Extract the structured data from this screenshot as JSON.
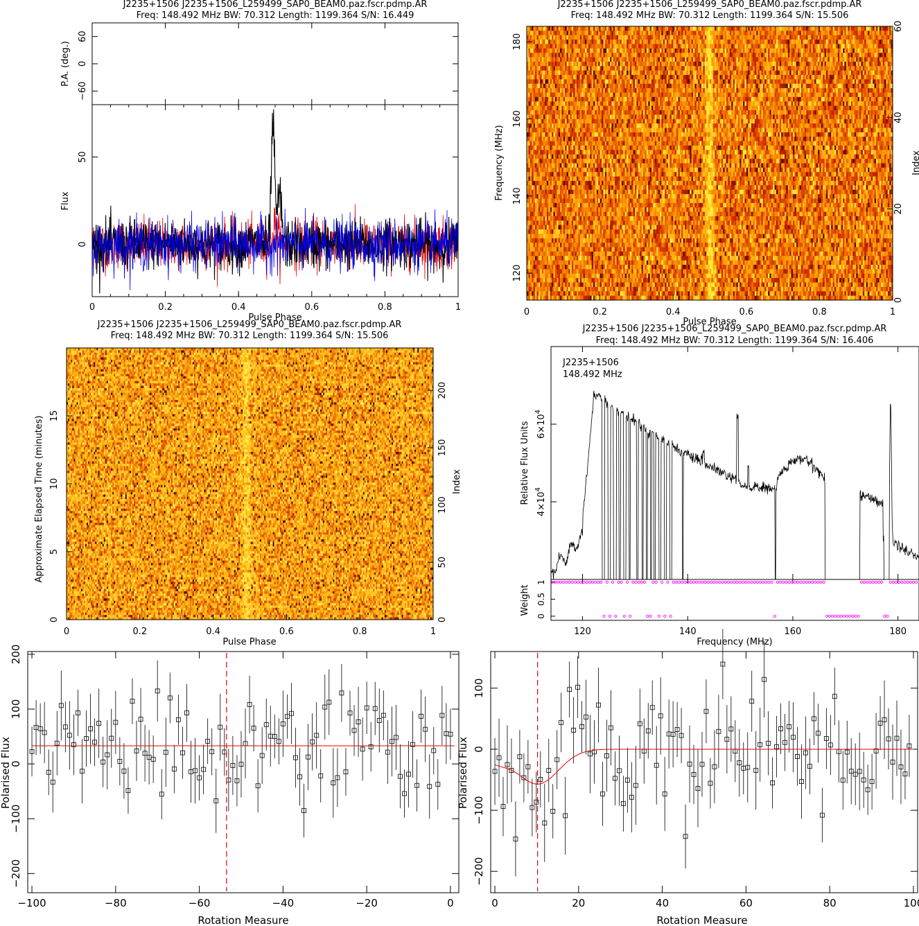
{
  "panels": {
    "profile": {
      "title": "J2235+1506  J2235+1506_L259499_SAP0_BEAM0.paz.fscr.pdmp.AR",
      "subtitle": "Freq: 148.492 MHz BW: 70.312 Length: 1199.364 S/N: 16.449",
      "xlabel": "Pulse Phase",
      "ylabel_pa": "P.A. (deg.)",
      "ylabel_flux": "Flux"
    },
    "freq_phase": {
      "title": "J2235+1506  J2235+1506_L259499_SAP0_BEAM0.paz.fscr.pdmp.AR",
      "subtitle": "Freq: 148.492 MHz BW: 70.312 Length: 1199.364 S/N: 15.506",
      "xlabel": "Pulse Phase",
      "ylabel": "Frequency (MHz)",
      "ylabel_right": "Index"
    },
    "time_phase": {
      "title": "J2235+1506  J2235+1506_L259499_SAP0_BEAM0.paz.fscr.pdmp.AR",
      "subtitle": "Freq: 148.492 MHz BW: 70.312 Length: 1199.364 S/N: 15.506",
      "xlabel": "Pulse Phase",
      "ylabel": "Approximate Elapsed Time (minutes)",
      "ylabel_right": "Index"
    },
    "bandpass": {
      "title": "J2235+1506  J2235+1506_L259499_SAP0_BEAM0.paz.fscr.pdmp.AR",
      "subtitle": "Freq: 148.492 MHz BW: 70.312 Length: 1199.364 S/N: 16.406",
      "xlabel": "Frequency (MHz)",
      "ylabel": "Relative Flux Units",
      "ylabel_weight": "Weight",
      "annotation_name": "J2235+1506",
      "annotation_freq": "148.492 MHz"
    },
    "rm_left": {
      "xlabel": "Rotation Measure",
      "ylabel": "Polarised Flux"
    },
    "rm_right": {
      "xlabel": "Rotation Measure",
      "ylabel": "Polarised Flux"
    }
  },
  "chart_data": [
    {
      "type": "line",
      "name": "pulse-profile",
      "xlim": [
        0,
        1
      ],
      "ylim": [
        -30,
        80
      ],
      "ytick_labels": [
        "0",
        "50"
      ],
      "xtick_labels": [
        "0",
        "0.2",
        "0.4",
        "0.6",
        "0.8",
        "1"
      ],
      "pa_ylim": [
        -90,
        90
      ],
      "pa_ytick_labels": [
        "-60",
        "0",
        "60"
      ],
      "pulse_phase": 0.5,
      "pulse_peak_flux": 78,
      "noise_rms": 7,
      "colors": {
        "total": "#000000",
        "linear": "#e00000",
        "circular": "#0000e0"
      }
    },
    {
      "type": "heatmap",
      "name": "frequency-vs-phase",
      "xlim": [
        0,
        1
      ],
      "ylim": [
        113,
        184
      ],
      "xtick_labels": [
        "0",
        "0.2",
        "0.4",
        "0.6",
        "0.8",
        "1"
      ],
      "ytick_labels": [
        "120",
        "140",
        "160",
        "180"
      ],
      "index_ticks": [
        "0",
        "20",
        "40",
        "60"
      ],
      "pulse_phase": 0.5
    },
    {
      "type": "heatmap",
      "name": "time-vs-phase",
      "xlim": [
        0,
        1
      ],
      "ylim": [
        0,
        20
      ],
      "xtick_labels": [
        "0",
        "0.2",
        "0.4",
        "0.6",
        "0.8",
        "1"
      ],
      "ytick_labels": [
        "0",
        "5",
        "10",
        "15"
      ],
      "index_ticks": [
        "0",
        "50",
        "100",
        "150",
        "200"
      ],
      "pulse_phase": 0.49
    },
    {
      "type": "line",
      "name": "bandpass",
      "xlim": [
        114,
        184
      ],
      "ylim": [
        20000,
        80000
      ],
      "xtick_labels": [
        "120",
        "140",
        "160",
        "180"
      ],
      "ytick_main": [
        40000,
        60000
      ],
      "weight_tick_labels": [
        "0",
        "0.5",
        "1"
      ],
      "colors": {
        "line": "#000000",
        "weights": "#ff00ff"
      }
    },
    {
      "type": "scatter",
      "name": "rm-search-negative",
      "xlim": [
        -101,
        2
      ],
      "ylim": [
        -235,
        205
      ],
      "xtick_labels": [
        "−100",
        "−80",
        "−60",
        "−40",
        "−20",
        "0"
      ],
      "ytick_labels": [
        "−200",
        "−100",
        "0",
        "100",
        "200"
      ],
      "marker_line": -53.5,
      "fit_level": 33,
      "colors": {
        "points": "#000000",
        "fit": "#e00000"
      }
    },
    {
      "type": "scatter",
      "name": "rm-search-positive",
      "xlim": [
        -1,
        101
      ],
      "ylim": [
        -235,
        160
      ],
      "xtick_labels": [
        "0",
        "20",
        "40",
        "60",
        "80",
        "100"
      ],
      "ytick_labels": [
        "−200",
        "−100",
        "0",
        "100"
      ],
      "marker_line": 10.2,
      "fit_dip_depth": -57,
      "fit_dip_width": 5,
      "colors": {
        "points": "#000000",
        "fit": "#e00000"
      }
    }
  ]
}
